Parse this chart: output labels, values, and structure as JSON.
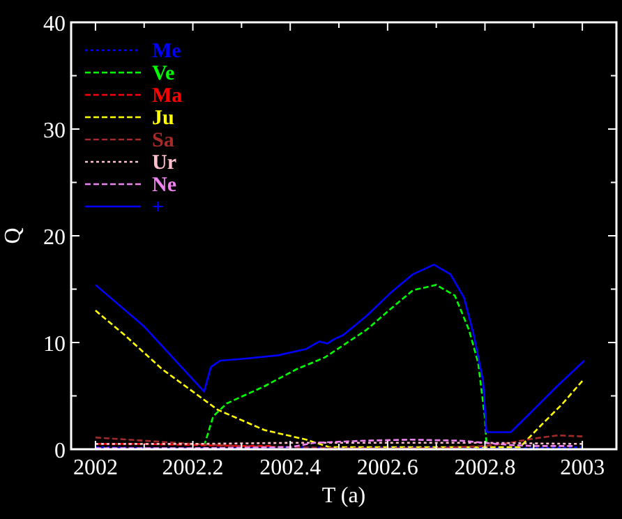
{
  "chart_data": {
    "type": "line",
    "xlabel": "T (a)",
    "ylabel": "Q",
    "xlim": [
      2001.95,
      2003.07
    ],
    "ylim": [
      0,
      40
    ],
    "xticks": [
      2002,
      {
        "value": 2002.1,
        "label": null
      },
      2002.2,
      {
        "value": 2002.3,
        "label": null
      },
      2002.4,
      {
        "value": 2002.5,
        "label": null
      },
      2002.6,
      {
        "value": 2002.7,
        "label": null
      },
      2002.8,
      {
        "value": 2002.9,
        "label": null
      },
      2003
    ],
    "yticks": [
      0,
      {
        "value": 5,
        "label": null
      },
      10,
      {
        "value": 15,
        "label": null
      },
      20,
      {
        "value": 25,
        "label": null
      },
      30,
      {
        "value": 35,
        "label": null
      },
      40
    ],
    "grid": false,
    "legend": "top left",
    "marker": "none",
    "series": [
      {
        "name": "Me",
        "color": "#0000ff",
        "line_style": "dotted",
        "x": [
          2002,
          2002.1,
          2002.2,
          2002.3,
          2002.4,
          2002.5,
          2002.6,
          2002.7,
          2002.8,
          2002.9,
          2003
        ],
        "values": [
          0.2,
          0.1,
          0.1,
          0.1,
          0.2,
          0.1,
          0.2,
          0.2,
          0.1,
          0.1,
          0.2
        ]
      },
      {
        "name": "Ve",
        "color": "#00ff00",
        "line_style": "dashed",
        "x": [
          2002.223,
          2002.242,
          2002.27,
          2002.347,
          2002.413,
          2002.471,
          2002.557,
          2002.605,
          2002.652,
          2002.7,
          2002.738,
          2002.767,
          2002.786,
          2002.8,
          2002.803
        ],
        "values": [
          0.3,
          3.1,
          4.3,
          5.9,
          7.5,
          8.6,
          11.2,
          13.1,
          14.9,
          15.4,
          14.4,
          11.2,
          8.1,
          2.9,
          0.6
        ]
      },
      {
        "name": "Ma",
        "color": "#ff0000",
        "line_style": "dashed",
        "x": [
          2002,
          2002.1,
          2002.2,
          2002.3,
          2002.36
        ],
        "values": [
          0.5,
          0.5,
          0.4,
          0.3,
          0.3
        ]
      },
      {
        "name": "Ju",
        "color": "#ffff00",
        "line_style": "dashed",
        "x": [
          2002,
          2002.06,
          2002.137,
          2002.203,
          2002.251,
          2002.347,
          2002.433,
          2002.48,
          2002.872,
          2002.91,
          2002.958,
          2003
        ],
        "values": [
          13.0,
          10.7,
          7.5,
          5.3,
          3.7,
          1.8,
          0.9,
          0.2,
          0.2,
          2.0,
          4.2,
          6.4
        ]
      },
      {
        "name": "Sa",
        "color": "#a52a2a",
        "line_style": "dashed",
        "x": [
          2002,
          2002.1,
          2002.2,
          2002.3,
          2002.4,
          2002.5,
          2002.6,
          2002.7,
          2002.8,
          2002.85,
          2002.9,
          2002.95,
          2003
        ],
        "values": [
          1.1,
          0.8,
          0.5,
          0.3,
          0.2,
          0.1,
          0.1,
          0.1,
          0.3,
          0.6,
          1.0,
          1.3,
          1.2
        ]
      },
      {
        "name": "Ur",
        "color": "#ffc0cb",
        "line_style": "dotted",
        "x": [
          2002,
          2002.2,
          2002.4,
          2002.6,
          2002.8,
          2003
        ],
        "values": [
          0.5,
          0.5,
          0.6,
          0.6,
          0.6,
          0.5
        ]
      },
      {
        "name": "Ne",
        "color": "#ee82ee",
        "line_style": "dashed",
        "x": [
          2002,
          2002.2,
          2002.4,
          2002.45,
          2002.55,
          2002.65,
          2002.75,
          2002.85,
          2002.9,
          2002.98
        ],
        "values": [
          0.1,
          0.1,
          0.2,
          0.6,
          0.8,
          0.9,
          0.8,
          0.4,
          0.3,
          0.3
        ]
      },
      {
        "name": "+",
        "color": "#0000ff",
        "line_style": "solid",
        "x": [
          2002,
          2002.1,
          2002.223,
          2002.237,
          2002.256,
          2002.309,
          2002.375,
          2002.433,
          2002.46,
          2002.476,
          2002.49,
          2002.509,
          2002.557,
          2002.605,
          2002.652,
          2002.695,
          2002.729,
          2002.757,
          2002.777,
          2002.796,
          2002.803,
          2002.853,
          2002.891,
          2002.948,
          2003.004
        ],
        "values": [
          15.4,
          11.5,
          5.4,
          7.7,
          8.3,
          8.5,
          8.8,
          9.4,
          10.1,
          9.9,
          10.3,
          10.7,
          12.5,
          14.6,
          16.4,
          17.3,
          16.4,
          14.2,
          10.7,
          6.4,
          1.6,
          1.6,
          3.3,
          5.9,
          8.3
        ]
      }
    ]
  }
}
